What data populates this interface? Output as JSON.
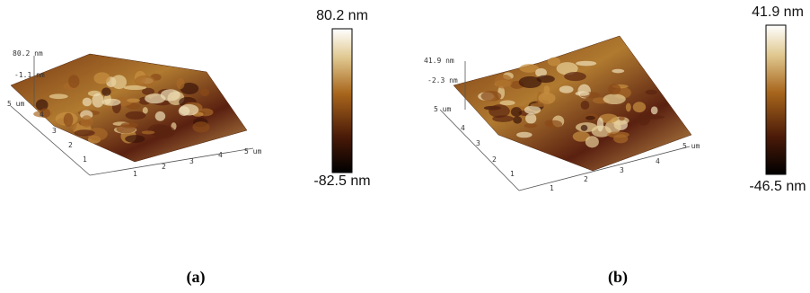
{
  "panels": [
    {
      "caption": "(a)",
      "z_max_label": "80.2 nm",
      "z_mid_label": "-1.1 nm",
      "y_axis_end": "5 um",
      "y_ticks": [
        "4",
        "3",
        "2",
        "1"
      ],
      "x_ticks": [
        "1",
        "2",
        "3",
        "4",
        "5 um"
      ],
      "scale_max": "80.2 nm",
      "scale_min": "-82.5 nm"
    },
    {
      "caption": "(b)",
      "z_max_label": "41.9 nm",
      "z_mid_label": "-2.3 nm",
      "y_axis_end": "5 um",
      "y_ticks": [
        "4",
        "3",
        "2",
        "1"
      ],
      "x_ticks": [
        "1",
        "2",
        "3",
        "4",
        "5 um"
      ],
      "scale_max": "41.9 nm",
      "scale_min": "-46.5 nm"
    }
  ]
}
